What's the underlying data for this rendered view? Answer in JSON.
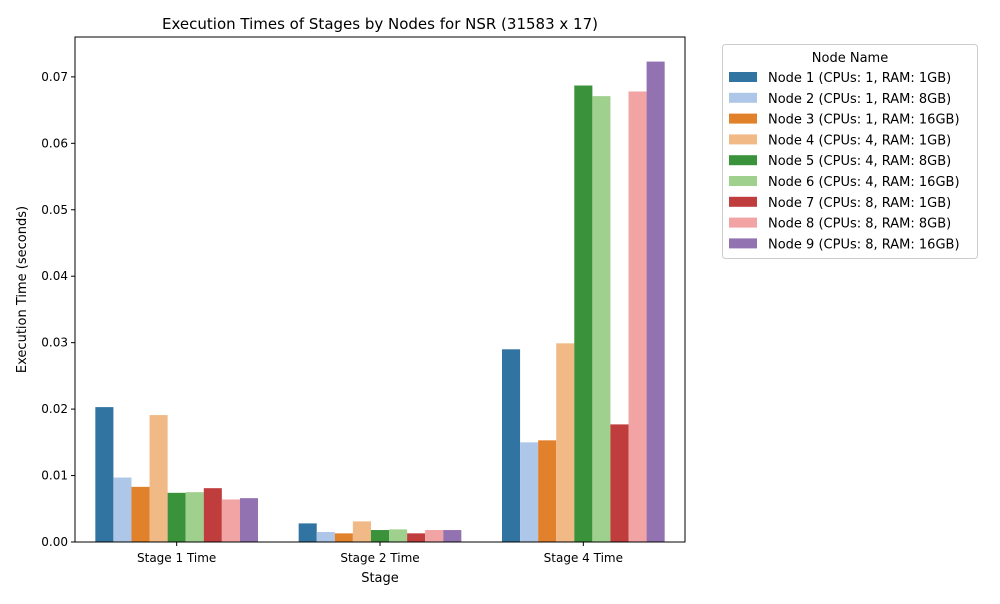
{
  "chart_data": {
    "type": "bar",
    "title": "Execution Times of Stages by Nodes for NSR (31583 x 17)",
    "xlabel": "Stage",
    "ylabel": "Execution Time (seconds)",
    "categories": [
      "Stage 1 Time",
      "Stage 2 Time",
      "Stage 4 Time"
    ],
    "ylim": [
      0,
      0.076
    ],
    "yticks": [
      0.0,
      0.01,
      0.02,
      0.03,
      0.04,
      0.05,
      0.06,
      0.07
    ],
    "ytick_labels": [
      "0.00",
      "0.01",
      "0.02",
      "0.03",
      "0.04",
      "0.05",
      "0.06",
      "0.07"
    ],
    "grid": false,
    "legend": {
      "title": "Node Name",
      "placement": "outside-upper-right"
    },
    "series": [
      {
        "name": "Node 1 (CPUs: 1, RAM: 1GB)",
        "color": "#3274a1",
        "values": [
          0.0203,
          0.0028,
          0.029
        ]
      },
      {
        "name": "Node 2 (CPUs: 1, RAM: 8GB)",
        "color": "#aec7e8",
        "values": [
          0.0097,
          0.0015,
          0.015
        ]
      },
      {
        "name": "Node 3 (CPUs: 1, RAM: 16GB)",
        "color": "#e1812c",
        "values": [
          0.0083,
          0.0013,
          0.0153
        ]
      },
      {
        "name": "Node 4 (CPUs: 4, RAM: 1GB)",
        "color": "#f0b985",
        "values": [
          0.0191,
          0.0031,
          0.0299
        ]
      },
      {
        "name": "Node 5 (CPUs: 4, RAM: 8GB)",
        "color": "#3a923a",
        "values": [
          0.0074,
          0.0018,
          0.0687
        ]
      },
      {
        "name": "Node 6 (CPUs: 4, RAM: 16GB)",
        "color": "#9fd08e",
        "values": [
          0.0075,
          0.0019,
          0.0671
        ]
      },
      {
        "name": "Node 7 (CPUs: 8, RAM: 1GB)",
        "color": "#c03d3e",
        "values": [
          0.0081,
          0.0013,
          0.0177
        ]
      },
      {
        "name": "Node 8 (CPUs: 8, RAM: 8GB)",
        "color": "#f2a4a4",
        "values": [
          0.0064,
          0.0018,
          0.0678
        ]
      },
      {
        "name": "Node 9 (CPUs: 8, RAM: 16GB)",
        "color": "#9372b2",
        "values": [
          0.0066,
          0.0018,
          0.0723
        ]
      }
    ]
  }
}
